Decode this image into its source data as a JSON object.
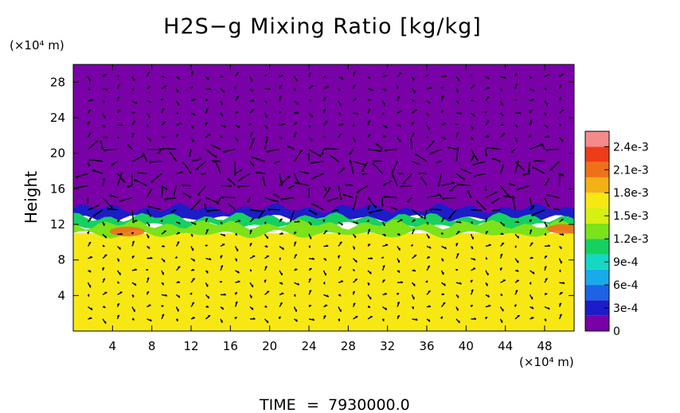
{
  "chart_data": {
    "type": "heatmap",
    "title": "H2S−g Mixing Ratio [kg/kg]",
    "ylabel": "Height",
    "y_unit": "(×10⁴ m)",
    "x_unit": "(×10⁴ m)",
    "x_ticks": [
      "4",
      "8",
      "12",
      "16",
      "20",
      "24",
      "28",
      "32",
      "36",
      "40",
      "44",
      "48"
    ],
    "y_ticks": [
      "4",
      "8",
      "12",
      "16",
      "20",
      "24",
      "28"
    ],
    "xlim": [
      0,
      51
    ],
    "ylim": [
      0,
      30
    ],
    "colorbar": {
      "labels": [
        "0",
        "3e-4",
        "6e-4",
        "9e-4",
        "1.2e-3",
        "1.5e-3",
        "1.8e-3",
        "2.1e-3",
        "2.4e-3"
      ],
      "range": [
        0,
        0.0026
      ],
      "colors": [
        "#7a00a8",
        "#1c1cc8",
        "#1e62e6",
        "#18aaea",
        "#14d8c4",
        "#16d060",
        "#7ce21a",
        "#d6f012",
        "#f7e814",
        "#f4b014",
        "#f07018",
        "#ee3c1a",
        "#f48a8a"
      ]
    },
    "field": {
      "upper_value": 0.0,
      "lower_value": 0.00162,
      "boundary_layers": [
        {
          "value": 0.00035,
          "y_bottom": 12.6,
          "y_top": 13.8
        },
        {
          "value": 0.00105,
          "y_bottom": 11.8,
          "y_top": 12.8
        },
        {
          "value": 0.00135,
          "y_bottom": 10.9,
          "y_top": 12.0
        }
      ],
      "hot_spots": [
        {
          "x": 5.5,
          "y": 11.2,
          "value": 0.00205
        },
        {
          "x": 50.0,
          "y": 11.5,
          "value": 0.0021
        }
      ]
    },
    "vectors": "wind field overlay (arrows)"
  },
  "footer": {
    "time_label": "TIME",
    "time_equals": "=",
    "time_value": "7930000.0"
  }
}
